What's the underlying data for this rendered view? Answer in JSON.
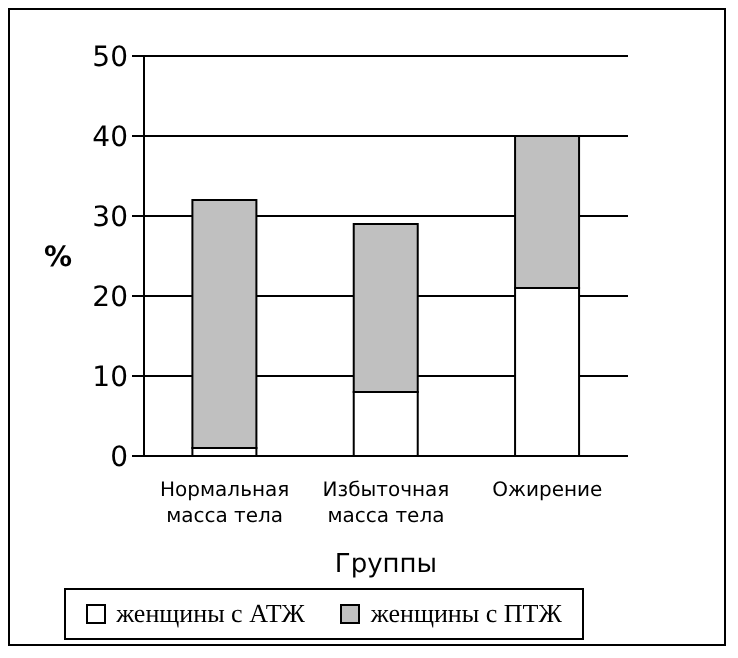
{
  "chart_data": {
    "type": "bar",
    "stacked": true,
    "ylabel": "%",
    "xlabel": "Группы",
    "categories": [
      "Нормальная масса тела",
      "Избыточная масса тела",
      "Ожирение"
    ],
    "series": [
      {
        "name": "женщины с АТЖ",
        "color": "#ffffff",
        "values": [
          1,
          8,
          21
        ]
      },
      {
        "name": "женщины с ПТЖ",
        "color": "#c0c0c0",
        "values": [
          31,
          21,
          19
        ]
      }
    ],
    "ylim": [
      0,
      50
    ],
    "yticks": [
      0,
      10,
      20,
      30,
      40,
      50
    ],
    "grid": "y",
    "legend": "bottom"
  }
}
